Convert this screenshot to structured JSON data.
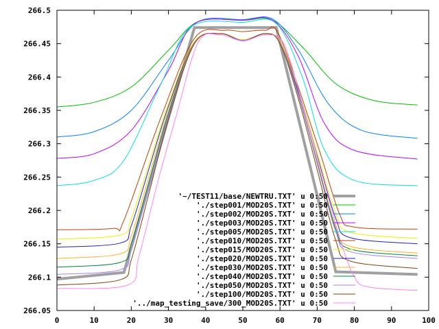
{
  "chart_data": {
    "type": "line",
    "title": "",
    "xlabel": "",
    "ylabel": "",
    "xlim": [
      0,
      100
    ],
    "ylim": [
      266.05,
      266.5
    ],
    "xticks": [
      "0",
      "10",
      "20",
      "30",
      "40",
      "50",
      "60",
      "70",
      "80",
      "90",
      "100"
    ],
    "yticks": [
      "266.05",
      "266.1",
      "266.15",
      "266.2",
      "266.25",
      "266.3",
      "266.35",
      "266.4",
      "266.45",
      "266.5"
    ],
    "grid": false,
    "legend_position": "bottom-right",
    "series": [
      {
        "name": "'~/TEST11/base/NEWTRU.TXT' u 0:50",
        "color": "#a0a0a0",
        "smooth": false,
        "points": [
          [
            0,
            266.097
          ],
          [
            18,
            266.107
          ],
          [
            37,
            266.474
          ],
          [
            59,
            266.474
          ],
          [
            75,
            266.108
          ],
          [
            97,
            266.104
          ]
        ]
      },
      {
        "name": "'./step001/MOD20S.TXT' u 0:50",
        "color": "#00c000",
        "smooth": true,
        "points": [
          [
            0,
            266.355
          ],
          [
            10,
            266.362
          ],
          [
            20,
            266.385
          ],
          [
            30,
            266.44
          ],
          [
            38,
            266.483
          ],
          [
            50,
            266.485
          ],
          [
            58,
            266.485
          ],
          [
            66,
            266.445
          ],
          [
            75,
            266.39
          ],
          [
            85,
            266.365
          ],
          [
            97,
            266.358
          ]
        ]
      },
      {
        "name": "'./step002/MOD20S.TXT' u 0:50",
        "color": "#0080ff",
        "smooth": true,
        "points": [
          [
            0,
            266.31
          ],
          [
            10,
            266.318
          ],
          [
            20,
            266.35
          ],
          [
            30,
            266.425
          ],
          [
            38,
            266.483
          ],
          [
            50,
            266.486
          ],
          [
            58,
            266.487
          ],
          [
            65,
            266.44
          ],
          [
            73,
            266.36
          ],
          [
            82,
            266.32
          ],
          [
            97,
            266.308
          ]
        ]
      },
      {
        "name": "'./step003/MOD20S.TXT' u 0:50",
        "color": "#c000ff",
        "smooth": true,
        "points": [
          [
            0,
            266.278
          ],
          [
            10,
            266.285
          ],
          [
            20,
            266.32
          ],
          [
            30,
            266.41
          ],
          [
            37,
            266.48
          ],
          [
            50,
            266.485
          ],
          [
            58,
            266.485
          ],
          [
            65,
            266.43
          ],
          [
            72,
            266.33
          ],
          [
            80,
            266.29
          ],
          [
            97,
            266.277
          ]
        ]
      },
      {
        "name": "'./step005/MOD20S.TXT' u 0:50",
        "color": "#00e0e0",
        "smooth": true,
        "points": [
          [
            0,
            266.237
          ],
          [
            10,
            266.245
          ],
          [
            18,
            266.275
          ],
          [
            28,
            266.39
          ],
          [
            36,
            266.475
          ],
          [
            50,
            266.482
          ],
          [
            59,
            266.48
          ],
          [
            66,
            266.4
          ],
          [
            72,
            266.29
          ],
          [
            80,
            266.245
          ],
          [
            97,
            266.237
          ]
        ]
      },
      {
        "name": "'./step010/MOD20S.TXT' u 0:50",
        "color": "#c04000",
        "smooth": true,
        "points": [
          [
            0,
            266.171
          ],
          [
            15,
            266.173
          ],
          [
            18,
            266.185
          ],
          [
            28,
            266.34
          ],
          [
            37,
            266.458
          ],
          [
            45,
            266.47
          ],
          [
            50,
            266.468
          ],
          [
            56,
            266.47
          ],
          [
            60,
            266.46
          ],
          [
            70,
            266.3
          ],
          [
            76,
            266.195
          ],
          [
            80,
            266.175
          ],
          [
            97,
            266.172
          ]
        ]
      },
      {
        "name": "'./step015/MOD20S.TXT' u 0:50",
        "color": "#eeee00",
        "smooth": true,
        "points": [
          [
            0,
            266.157
          ],
          [
            17,
            266.163
          ],
          [
            20,
            266.188
          ],
          [
            25,
            266.274
          ],
          [
            30,
            266.36
          ],
          [
            37,
            266.453
          ],
          [
            44,
            266.465
          ],
          [
            50,
            266.456
          ],
          [
            56,
            266.465
          ],
          [
            60,
            266.453
          ],
          [
            65,
            266.379
          ],
          [
            70,
            266.287
          ],
          [
            75,
            266.195
          ],
          [
            79,
            266.167
          ],
          [
            97,
            266.158
          ]
        ]
      },
      {
        "name": "'./step020/MOD20S.TXT' u 0:50",
        "color": "#2020c0",
        "smooth": true,
        "points": [
          [
            0,
            266.145
          ],
          [
            17,
            266.151
          ],
          [
            20,
            266.177
          ],
          [
            25,
            266.267
          ],
          [
            30,
            266.356
          ],
          [
            37,
            266.452
          ],
          [
            44,
            266.465
          ],
          [
            50,
            266.455
          ],
          [
            56,
            266.465
          ],
          [
            60,
            266.452
          ],
          [
            65,
            266.377
          ],
          [
            70,
            266.282
          ],
          [
            75,
            266.188
          ],
          [
            79,
            266.159
          ],
          [
            97,
            266.15
          ]
        ]
      },
      {
        "name": "'./step030/MOD20S.TXT' u 0:50",
        "color": "#ffb020",
        "smooth": true,
        "points": [
          [
            0,
            266.128
          ],
          [
            17,
            266.135
          ],
          [
            20,
            266.162
          ],
          [
            25,
            266.256
          ],
          [
            30,
            266.35
          ],
          [
            37,
            266.452
          ],
          [
            44,
            266.465
          ],
          [
            50,
            266.455
          ],
          [
            56,
            266.465
          ],
          [
            60,
            266.452
          ],
          [
            65,
            266.373
          ],
          [
            70,
            266.274
          ],
          [
            75,
            266.175
          ],
          [
            79,
            266.146
          ],
          [
            97,
            266.136
          ]
        ]
      },
      {
        "name": "'./step040/MOD20S.TXT' u 0:50",
        "color": "#008040",
        "smooth": true,
        "points": [
          [
            0,
            266.115
          ],
          [
            17,
            266.122
          ],
          [
            20,
            266.15
          ],
          [
            25,
            266.248
          ],
          [
            30,
            266.346
          ],
          [
            37,
            266.451
          ],
          [
            44,
            266.465
          ],
          [
            50,
            266.455
          ],
          [
            56,
            266.465
          ],
          [
            60,
            266.451
          ],
          [
            65,
            266.372
          ],
          [
            70,
            266.272
          ],
          [
            75,
            266.172
          ],
          [
            79,
            266.142
          ],
          [
            97,
            266.132
          ]
        ]
      },
      {
        "name": "'./step050/MOD20S.TXT' u 0:50",
        "color": "#a080ff",
        "smooth": true,
        "points": [
          [
            0,
            266.104
          ],
          [
            17,
            266.111
          ],
          [
            20,
            266.14
          ],
          [
            25,
            266.241
          ],
          [
            30,
            266.342
          ],
          [
            37,
            266.451
          ],
          [
            44,
            266.465
          ],
          [
            50,
            266.455
          ],
          [
            56,
            266.465
          ],
          [
            60,
            266.451
          ],
          [
            65,
            266.371
          ],
          [
            70,
            266.27
          ],
          [
            75,
            266.168
          ],
          [
            79,
            266.138
          ],
          [
            97,
            266.128
          ]
        ]
      },
      {
        "name": "'./step100/MOD20S.TXT' u 0:50",
        "color": "#804000",
        "smooth": true,
        "points": [
          [
            0,
            266.088
          ],
          [
            17,
            266.096
          ],
          [
            20,
            266.126
          ],
          [
            25,
            266.231
          ],
          [
            30,
            266.337
          ],
          [
            37,
            266.45
          ],
          [
            44,
            266.465
          ],
          [
            50,
            266.454
          ],
          [
            56,
            266.465
          ],
          [
            60,
            266.45
          ],
          [
            65,
            266.366
          ],
          [
            70,
            266.261
          ],
          [
            75,
            266.155
          ],
          [
            79,
            266.124
          ],
          [
            97,
            266.113
          ]
        ]
      },
      {
        "name": "'../map_testing_save/300_MOD20S.TXT' u 0:50",
        "color": "#ff80ff",
        "smooth": true,
        "points": [
          [
            0,
            266.083
          ],
          [
            19,
            266.088
          ],
          [
            22,
            266.13
          ],
          [
            27,
            266.24
          ],
          [
            32,
            266.34
          ],
          [
            38,
            266.452
          ],
          [
            44,
            266.463
          ],
          [
            50,
            266.454
          ],
          [
            56,
            266.463
          ],
          [
            61,
            266.45
          ],
          [
            66,
            266.36
          ],
          [
            71,
            266.26
          ],
          [
            76,
            266.16
          ],
          [
            80,
            266.1
          ],
          [
            84,
            266.085
          ],
          [
            97,
            266.08
          ]
        ]
      }
    ]
  }
}
